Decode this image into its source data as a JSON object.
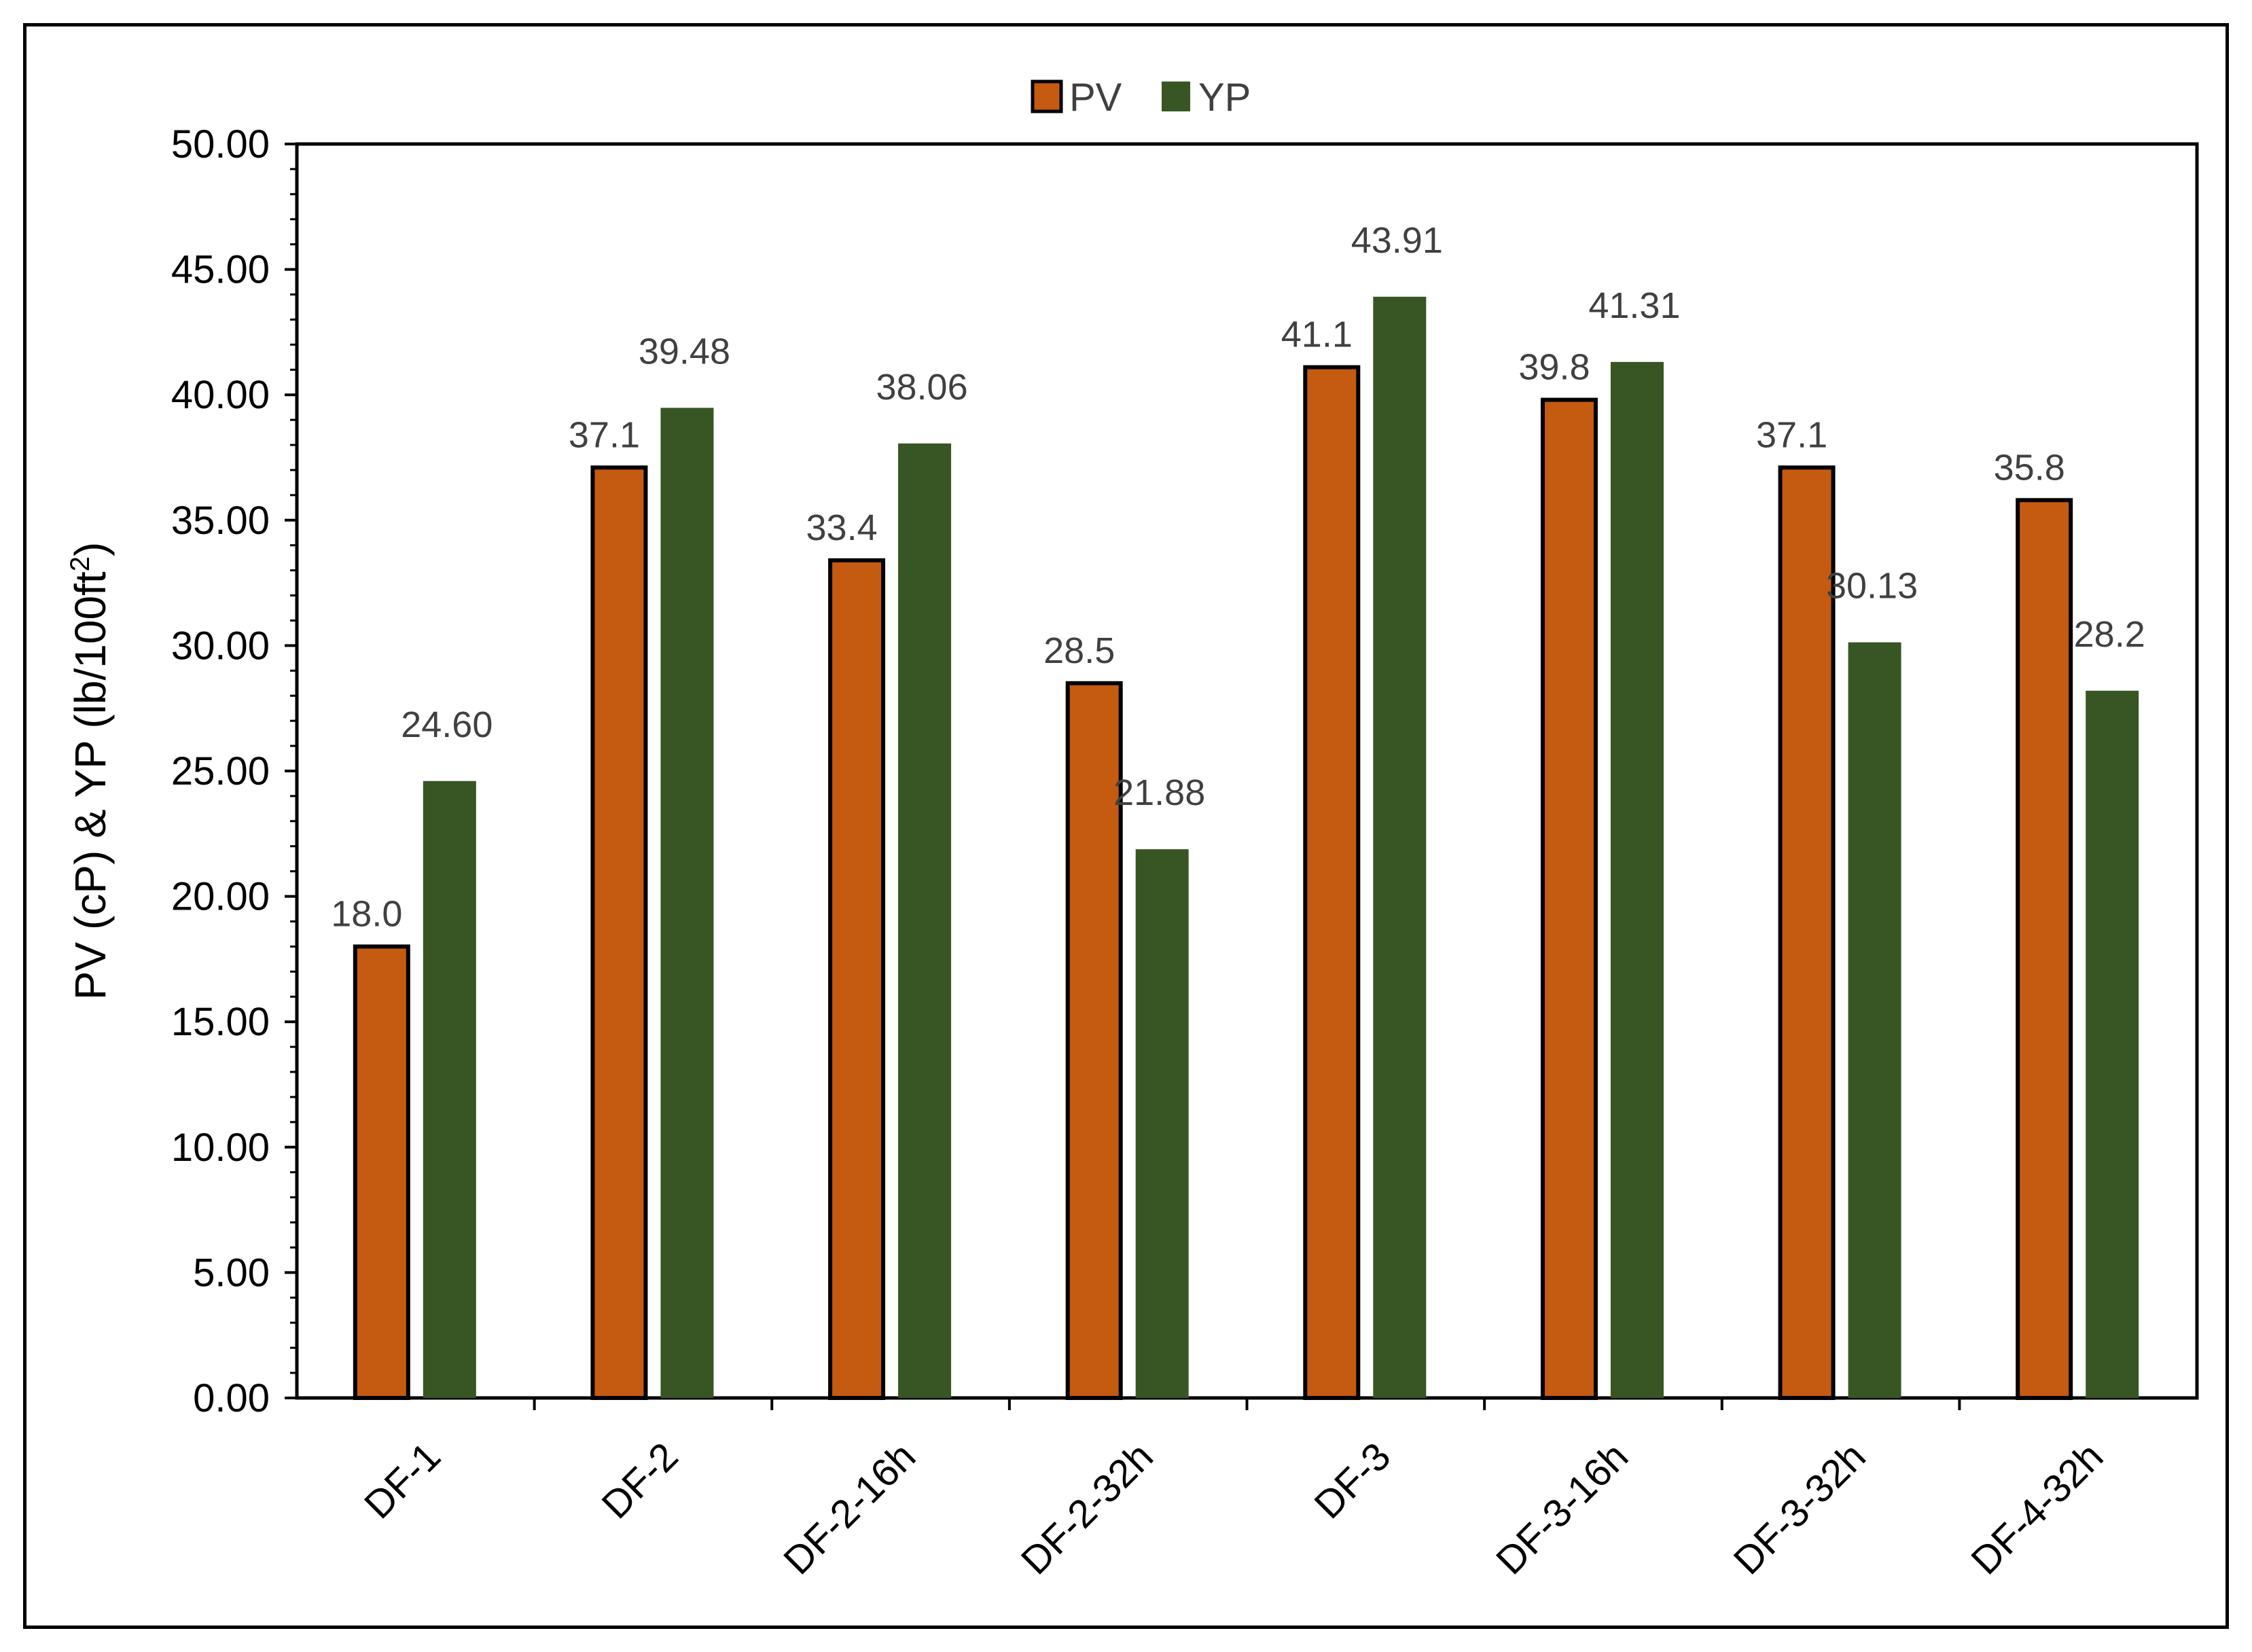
{
  "chart_data": {
    "type": "bar",
    "title": "",
    "xlabel": "",
    "ylabel_main": "PV (cP) & YP (lb/100ft",
    "ylabel_sup": "2",
    "ylabel_tail": ")",
    "ylim": [
      0,
      50
    ],
    "ytick_step": 5,
    "ytick_labels": [
      "0.00",
      "5.00",
      "10.00",
      "15.00",
      "20.00",
      "25.00",
      "30.00",
      "35.00",
      "40.00",
      "45.00",
      "50.00"
    ],
    "grid": false,
    "legend_position": "top-center",
    "categories": [
      "DF-1",
      "DF-2",
      "DF-2-16h",
      "DF-2-32h",
      "DF-3",
      "DF-3-16h",
      "DF-3-32h",
      "DF-4-32h"
    ],
    "series": [
      {
        "name": "PV",
        "color": "#C55A11",
        "outline": "#000000",
        "values": [
          18.0,
          37.1,
          33.4,
          28.5,
          41.1,
          39.8,
          37.1,
          35.8
        ],
        "labels": [
          "18.0",
          "37.1",
          "33.4",
          "28.5",
          "41.1",
          "39.8",
          "37.1",
          "35.8"
        ]
      },
      {
        "name": "YP",
        "color": "#375623",
        "outline": "none",
        "values": [
          24.6,
          39.48,
          38.06,
          21.88,
          43.91,
          41.31,
          30.13,
          28.2
        ],
        "labels": [
          "24.60",
          "39.48",
          "38.06",
          "21.88",
          "43.91",
          "41.31",
          "30.13",
          "28.2"
        ]
      }
    ]
  }
}
